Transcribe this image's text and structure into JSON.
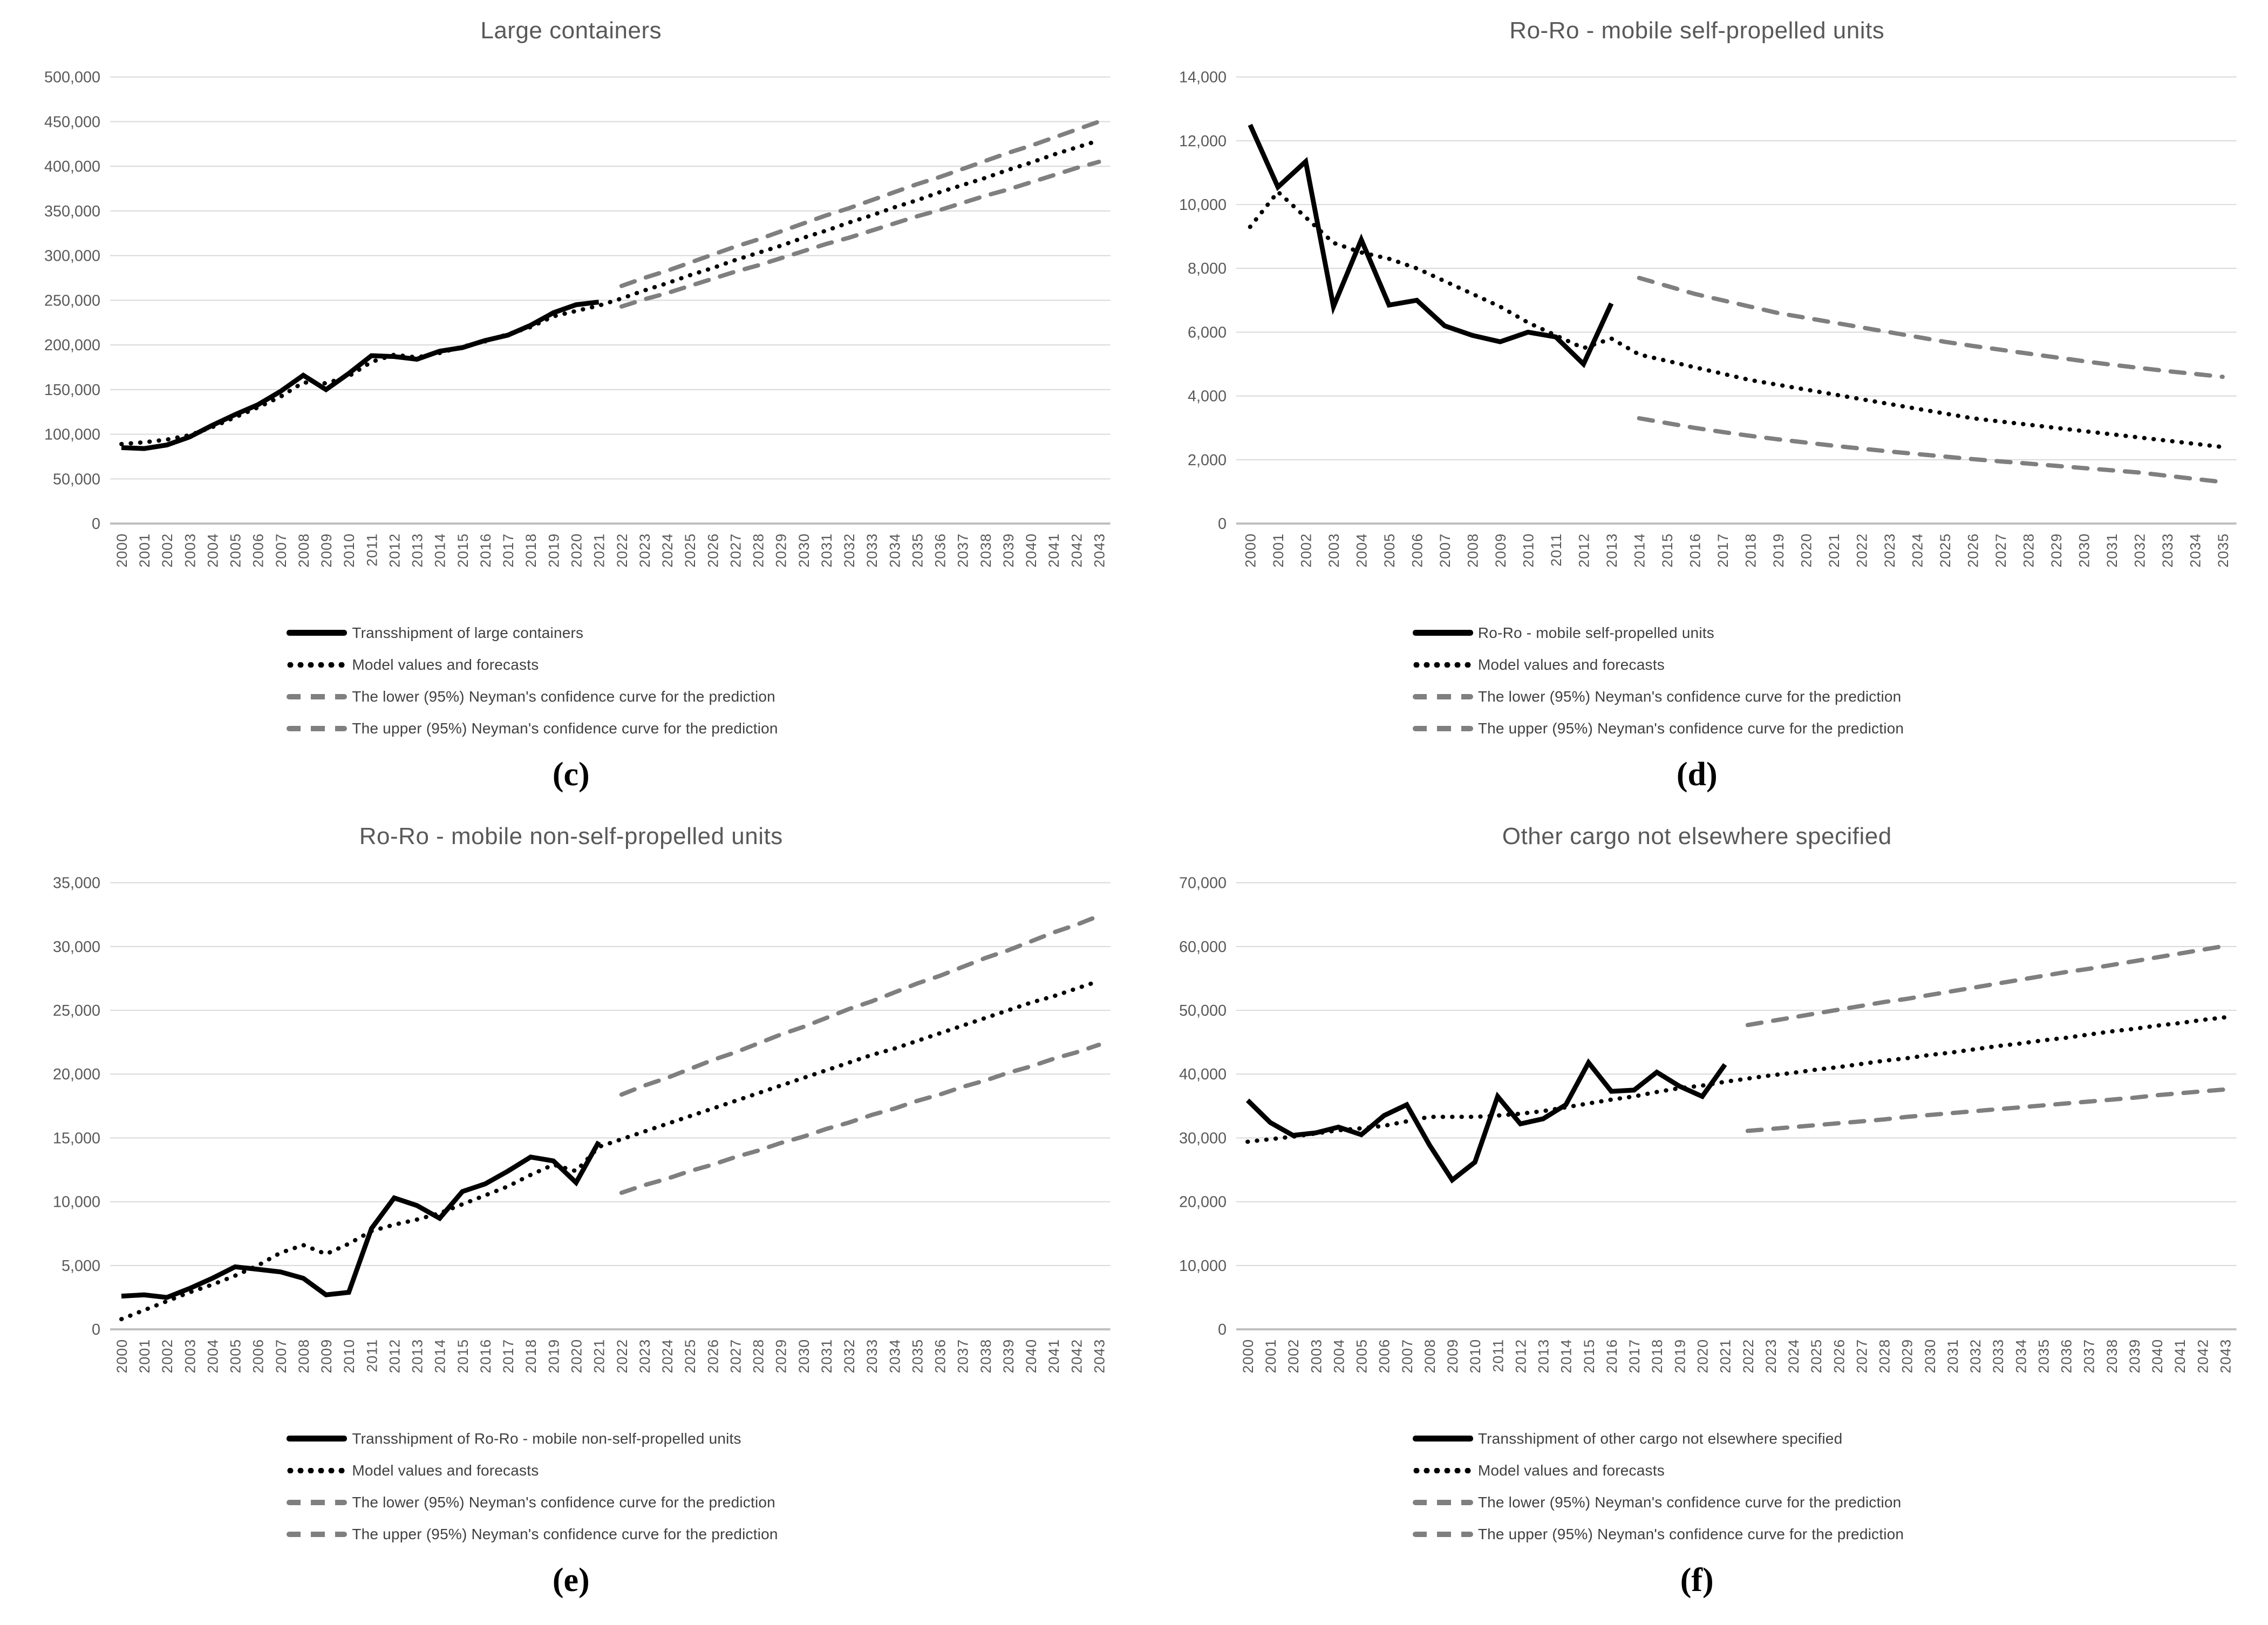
{
  "styles": {
    "grid_color": "#d9d9d9",
    "axis_color": "#bfbfbf",
    "text_color": "#595959",
    "series_color": "#000000",
    "confidence_color": "#7f7f7f"
  },
  "chart_data": [
    {
      "type": "line",
      "letter": "(c)",
      "title": "Large containers",
      "x_start": 2000,
      "x_end": 2043,
      "ylim": [
        0,
        500000
      ],
      "y_step": 50000,
      "grid": true,
      "legend_position": "bottom",
      "series": [
        {
          "name": "actual",
          "label": "Transshipment of large containers",
          "style": "solid",
          "color": "#000000",
          "start_year": 2000,
          "values": [
            85000,
            84000,
            88000,
            97000,
            110000,
            122000,
            133000,
            148000,
            166000,
            150000,
            168000,
            188000,
            187000,
            184000,
            193000,
            197000,
            205000,
            211000,
            222000,
            236000,
            245000,
            248000
          ]
        },
        {
          "name": "model",
          "label": "Model values and forecasts",
          "style": "dotted",
          "color": "#000000",
          "start_year": 2000,
          "values": [
            89000,
            91000,
            94000,
            99000,
            108000,
            119000,
            130000,
            142000,
            158000,
            157000,
            165000,
            181000,
            189000,
            186000,
            191000,
            198000,
            204000,
            212000,
            220000,
            232000,
            238000,
            244000,
            252000,
            261000,
            269000,
            278000,
            286000,
            295000,
            303000,
            311000,
            320000,
            328000,
            337000,
            345000,
            354000,
            362000,
            371000,
            379000,
            387000,
            396000,
            404000,
            413000,
            421000,
            429000
          ]
        },
        {
          "name": "lower",
          "label": "The lower (95%) Neyman's confidence curve for the prediction",
          "style": "dashed",
          "color": "#7f7f7f",
          "start_year": 2022,
          "values": [
            243000,
            251000,
            258000,
            266000,
            274000,
            282000,
            289000,
            297000,
            305000,
            313000,
            320000,
            328000,
            336000,
            344000,
            351000,
            359000,
            367000,
            374000,
            382000,
            390000,
            398000,
            405000
          ]
        },
        {
          "name": "upper",
          "label": "The upper (95%) Neyman's confidence curve for the prediction",
          "style": "dashed",
          "color": "#7f7f7f",
          "start_year": 2022,
          "values": [
            266000,
            275000,
            283000,
            292000,
            301000,
            310000,
            318000,
            327000,
            336000,
            345000,
            353000,
            362000,
            371000,
            380000,
            388000,
            397000,
            406000,
            415000,
            423000,
            432000,
            441000,
            450000
          ]
        }
      ]
    },
    {
      "type": "line",
      "letter": "(d)",
      "title": "Ro-Ro - mobile self-propelled units",
      "x_start": 2000,
      "x_end": 2035,
      "ylim": [
        0,
        14000
      ],
      "y_step": 2000,
      "grid": true,
      "legend_position": "bottom",
      "series": [
        {
          "name": "actual",
          "label": "Ro-Ro - mobile self-propelled units",
          "style": "solid",
          "color": "#000000",
          "start_year": 2000,
          "values": [
            12500,
            10550,
            11350,
            6800,
            8900,
            6850,
            7000,
            6200,
            5900,
            5700,
            6000,
            5850,
            5000,
            6900
          ]
        },
        {
          "name": "model",
          "label": "Model values and forecasts",
          "style": "dotted",
          "color": "#000000",
          "start_year": 2000,
          "values": [
            9300,
            10400,
            9600,
            8800,
            8500,
            8300,
            8000,
            7600,
            7200,
            6800,
            6300,
            5900,
            5500,
            5800,
            5300,
            5100,
            4900,
            4700,
            4500,
            4350,
            4200,
            4050,
            3900,
            3750,
            3600,
            3450,
            3300,
            3200,
            3100,
            3000,
            2900,
            2800,
            2700,
            2600,
            2500,
            2400
          ]
        },
        {
          "name": "lower",
          "label": "The lower (95%) Neyman's confidence curve for the prediction",
          "style": "dashed",
          "color": "#7f7f7f",
          "start_year": 2014,
          "values": [
            3300,
            3150,
            3000,
            2870,
            2750,
            2640,
            2540,
            2440,
            2350,
            2260,
            2180,
            2100,
            2020,
            1950,
            1880,
            1810,
            1740,
            1670,
            1600,
            1500,
            1400,
            1300
          ]
        },
        {
          "name": "upper",
          "label": "The upper (95%) Neyman's confidence curve for the prediction",
          "style": "dashed",
          "color": "#7f7f7f",
          "start_year": 2014,
          "values": [
            7700,
            7450,
            7200,
            7000,
            6800,
            6600,
            6450,
            6300,
            6150,
            6000,
            5850,
            5700,
            5570,
            5450,
            5330,
            5210,
            5090,
            4980,
            4880,
            4780,
            4690,
            4600
          ]
        }
      ]
    },
    {
      "type": "line",
      "letter": "(e)",
      "title": "Ro-Ro - mobile non-self-propelled units",
      "x_start": 2000,
      "x_end": 2043,
      "ylim": [
        0,
        35000
      ],
      "y_step": 5000,
      "grid": true,
      "legend_position": "bottom",
      "series": [
        {
          "name": "actual",
          "label": "Transshipment of Ro-Ro - mobile non-self-propelled units",
          "style": "solid",
          "color": "#000000",
          "start_year": 2000,
          "values": [
            2600,
            2700,
            2500,
            3200,
            4000,
            4900,
            4700,
            4500,
            4000,
            2700,
            2900,
            7900,
            10300,
            9700,
            8700,
            10800,
            11400,
            12400,
            13500,
            13200,
            11500,
            14700
          ]
        },
        {
          "name": "model",
          "label": "Model values and forecasts",
          "style": "dotted",
          "color": "#000000",
          "start_year": 2000,
          "values": [
            800,
            1500,
            2200,
            2900,
            3500,
            4200,
            5000,
            6000,
            6600,
            5900,
            6700,
            7700,
            8200,
            8600,
            9100,
            9800,
            10500,
            11200,
            12100,
            12900,
            12400,
            14300,
            14900,
            15500,
            16100,
            16700,
            17300,
            17900,
            18500,
            19100,
            19700,
            20300,
            20900,
            21500,
            22000,
            22600,
            23200,
            23800,
            24400,
            25000,
            25600,
            26100,
            26700,
            27300
          ]
        },
        {
          "name": "lower",
          "label": "The lower (95%) Neyman's confidence curve for the prediction",
          "style": "dashed",
          "color": "#7f7f7f",
          "start_year": 2022,
          "values": [
            10700,
            11300,
            11800,
            12400,
            12900,
            13500,
            14000,
            14600,
            15100,
            15700,
            16200,
            16800,
            17300,
            17900,
            18400,
            19000,
            19500,
            20100,
            20600,
            21200,
            21700,
            22300
          ]
        },
        {
          "name": "upper",
          "label": "The upper (95%) Neyman's confidence curve for the prediction",
          "style": "dashed",
          "color": "#7f7f7f",
          "start_year": 2022,
          "values": [
            18400,
            19100,
            19700,
            20400,
            21100,
            21700,
            22400,
            23100,
            23700,
            24400,
            25100,
            25700,
            26400,
            27100,
            27700,
            28400,
            29100,
            29700,
            30400,
            31100,
            31700,
            32400
          ]
        }
      ]
    },
    {
      "type": "line",
      "letter": "(f)",
      "title": "Other cargo not elsewhere specified",
      "x_start": 2000,
      "x_end": 2043,
      "ylim": [
        0,
        70000
      ],
      "y_step": 10000,
      "grid": true,
      "legend_position": "bottom",
      "series": [
        {
          "name": "actual",
          "label": "Transshipment of other cargo not elsewhere specified",
          "style": "solid",
          "color": "#000000",
          "start_year": 2000,
          "values": [
            35900,
            32400,
            30400,
            30800,
            31700,
            30500,
            33500,
            35200,
            28900,
            23400,
            26200,
            36500,
            32200,
            33000,
            35200,
            41800,
            37300,
            37500,
            40300,
            38100,
            36500,
            41500
          ]
        },
        {
          "name": "model",
          "label": "Model values and forecasts",
          "style": "dotted",
          "color": "#000000",
          "start_year": 2000,
          "values": [
            29400,
            29800,
            30200,
            30700,
            31200,
            31500,
            31900,
            32600,
            33300,
            33300,
            33300,
            33500,
            33800,
            34200,
            34800,
            35400,
            36000,
            36500,
            37200,
            37800,
            38200,
            38800,
            39300,
            39800,
            40200,
            40700,
            41100,
            41600,
            42100,
            42500,
            43000,
            43400,
            43900,
            44400,
            44800,
            45300,
            45700,
            46200,
            46700,
            47100,
            47600,
            48000,
            48500,
            48900
          ]
        },
        {
          "name": "lower",
          "label": "The lower (95%) Neyman's confidence curve for the prediction",
          "style": "dashed",
          "color": "#7f7f7f",
          "start_year": 2022,
          "values": [
            31100,
            31400,
            31700,
            32000,
            32300,
            32600,
            32900,
            33300,
            33600,
            33900,
            34200,
            34500,
            34800,
            35100,
            35400,
            35700,
            36000,
            36300,
            36700,
            37000,
            37300,
            37600
          ]
        },
        {
          "name": "upper",
          "label": "The upper (95%) Neyman's confidence curve for the prediction",
          "style": "dashed",
          "color": "#7f7f7f",
          "start_year": 2022,
          "values": [
            47700,
            48300,
            48900,
            49500,
            50100,
            50700,
            51300,
            51800,
            52400,
            53000,
            53600,
            54200,
            54800,
            55400,
            56000,
            56500,
            57100,
            57700,
            58300,
            58900,
            59500,
            60100
          ]
        }
      ]
    }
  ]
}
